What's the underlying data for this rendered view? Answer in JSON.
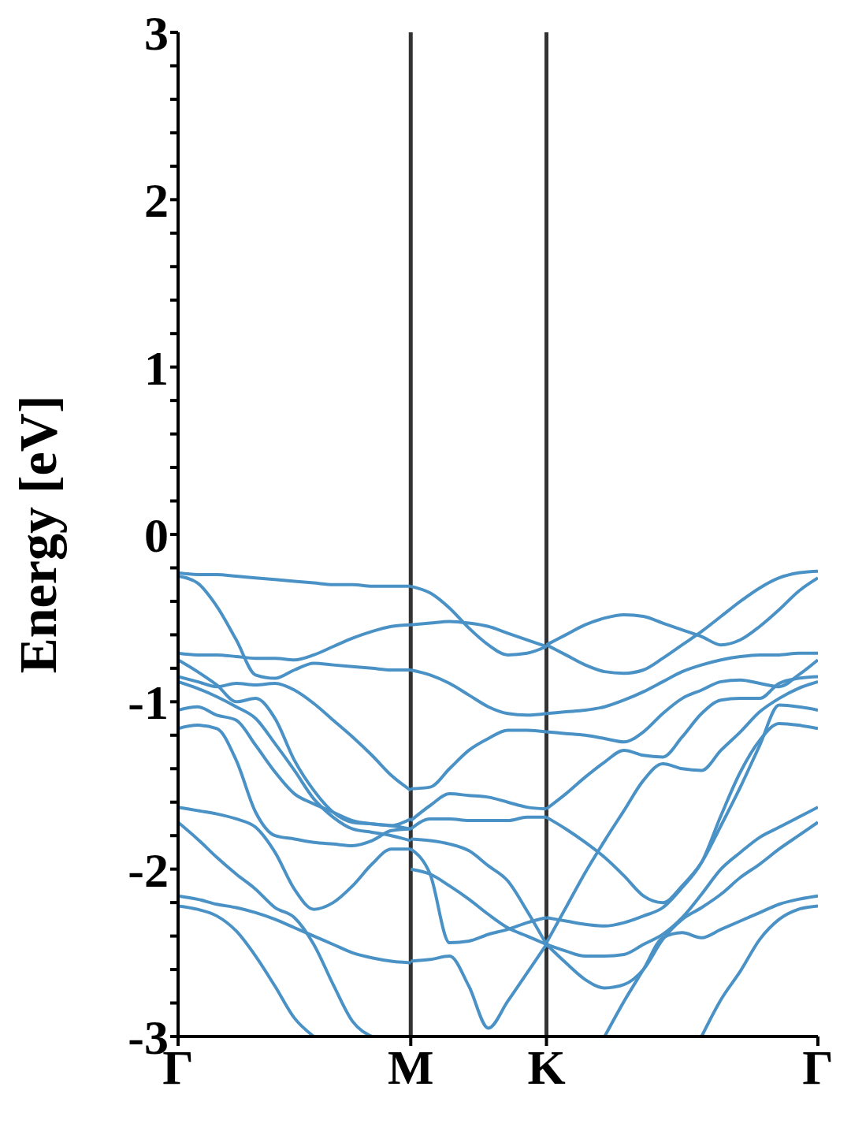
{
  "chart_data": {
    "type": "line",
    "ylabel": "Energy [eV]",
    "categories": [
      "Γ",
      null,
      null,
      null,
      null,
      null,
      null,
      null,
      null,
      null,
      null,
      null,
      "M",
      null,
      null,
      null,
      null,
      null,
      null,
      "K",
      null,
      null,
      null,
      null,
      null,
      null,
      null,
      null,
      null,
      null,
      null,
      null,
      null,
      "Γ"
    ],
    "ylim": [
      -3,
      3
    ],
    "yticks": [
      -3,
      {
        "value": -2.8,
        "label": null
      },
      {
        "value": -2.6,
        "label": null
      },
      {
        "value": -2.4,
        "label": null
      },
      {
        "value": -2.2,
        "label": null
      },
      -2,
      {
        "value": -1.8,
        "label": null
      },
      {
        "value": -1.6,
        "label": null
      },
      {
        "value": -1.4,
        "label": null
      },
      {
        "value": -1.2,
        "label": null
      },
      -1,
      {
        "value": -0.8,
        "label": null
      },
      {
        "value": -0.6,
        "label": null
      },
      {
        "value": -0.4,
        "label": null
      },
      {
        "value": -0.2,
        "label": null
      },
      0,
      {
        "value": 0.2,
        "label": null
      },
      {
        "value": 0.4,
        "label": null
      },
      {
        "value": 0.6,
        "label": null
      },
      {
        "value": 0.8,
        "label": null
      },
      1,
      {
        "value": 1.2,
        "label": null
      },
      {
        "value": 1.4,
        "label": null
      },
      {
        "value": 1.6,
        "label": null
      },
      {
        "value": 1.8,
        "label": null
      },
      2,
      {
        "value": 2.2,
        "label": null
      },
      {
        "value": 2.4,
        "label": null
      },
      {
        "value": 2.6,
        "label": null
      },
      {
        "value": 2.8,
        "label": null
      },
      3
    ],
    "ref_lines": [
      {
        "axis": "x",
        "value": "M",
        "color": "#333333"
      },
      {
        "axis": "x",
        "value": "K",
        "color": "#333333"
      }
    ],
    "series": [
      {
        "color": "#4a92c6",
        "values": [
          -0.23,
          -0.24,
          -0.24,
          -0.25,
          -0.26,
          -0.27,
          -0.28,
          -0.29,
          -0.3,
          -0.3,
          -0.31,
          -0.31,
          -0.31,
          null,
          null,
          null,
          null,
          null,
          null,
          null,
          null,
          null,
          null,
          null,
          null,
          null,
          null,
          null,
          null,
          null,
          null,
          null,
          null,
          null
        ]
      },
      {
        "color": "#4a92c6",
        "values": [
          -0.25,
          -0.29,
          -0.43,
          -0.63,
          -0.84,
          -0.86,
          -0.81,
          -0.77,
          -0.78,
          -0.79,
          -0.8,
          -0.81,
          -0.81,
          null,
          null,
          null,
          null,
          null,
          null,
          null,
          null,
          null,
          null,
          null,
          null,
          null,
          null,
          null,
          null,
          null,
          null,
          null,
          null,
          null
        ]
      },
      {
        "color": "#4a92c6",
        "values": [
          -0.71,
          -0.72,
          -0.72,
          -0.73,
          -0.74,
          -0.74,
          -0.75,
          -0.72,
          -0.67,
          -0.62,
          -0.58,
          -0.55,
          -0.54,
          null,
          null,
          null,
          null,
          null,
          null,
          null,
          null,
          null,
          null,
          null,
          null,
          null,
          null,
          null,
          null,
          null,
          null,
          null,
          null,
          null
        ]
      },
      {
        "color": "#4a92c6",
        "values": [
          -0.75,
          -0.82,
          -0.9,
          -1,
          -0.98,
          -1.1,
          -1.35,
          -1.53,
          -1.66,
          -1.72,
          -1.73,
          -1.74,
          -1.76,
          null,
          null,
          null,
          null,
          null,
          null,
          null,
          null,
          null,
          null,
          null,
          null,
          null,
          null,
          null,
          null,
          null,
          null,
          null,
          null,
          null
        ]
      },
      {
        "color": "#4a92c6",
        "values": [
          -0.85,
          -0.88,
          -0.91,
          -0.89,
          -0.9,
          -0.89,
          -0.93,
          -1.01,
          -1.11,
          -1.21,
          -1.32,
          -1.44,
          -1.53,
          null,
          null,
          null,
          null,
          null,
          null,
          null,
          null,
          null,
          null,
          null,
          null,
          null,
          null,
          null,
          null,
          null,
          null,
          null,
          null,
          null
        ]
      },
      {
        "color": "#4a92c6",
        "values": [
          -0.88,
          -0.92,
          -0.97,
          -1.03,
          -1.1,
          -1.25,
          -1.41,
          -1.58,
          -1.69,
          -1.76,
          -1.78,
          -1.8,
          -1.83,
          null,
          null,
          null,
          null,
          null,
          null,
          null,
          null,
          null,
          null,
          null,
          null,
          null,
          null,
          null,
          null,
          null,
          null,
          null,
          null,
          null
        ]
      },
      {
        "color": "#4a92c6",
        "values": [
          -1.05,
          -1.03,
          -1.08,
          -1.11,
          -1.26,
          -1.42,
          -1.55,
          -1.61,
          -1.66,
          -1.71,
          -1.73,
          -1.74,
          -1.7,
          null,
          null,
          null,
          null,
          null,
          null,
          null,
          null,
          null,
          null,
          null,
          null,
          null,
          null,
          null,
          null,
          null,
          null,
          null,
          null,
          null
        ]
      },
      {
        "color": "#4a92c6",
        "values": [
          -1.16,
          -1.14,
          -1.16,
          -1.35,
          -1.66,
          -1.8,
          -1.82,
          -1.84,
          -1.85,
          -1.86,
          -1.83,
          -1.77,
          -1.76,
          null,
          null,
          null,
          null,
          null,
          null,
          null,
          null,
          null,
          null,
          null,
          null,
          null,
          null,
          null,
          null,
          null,
          null,
          null,
          null,
          null
        ]
      },
      {
        "color": "#4a92c6",
        "values": [
          -1.63,
          -1.65,
          -1.67,
          -1.7,
          -1.75,
          -1.9,
          -2.12,
          -2.24,
          -2.2,
          -2.1,
          -1.97,
          -1.88,
          -1.88,
          null,
          null,
          null,
          null,
          null,
          null,
          null,
          null,
          null,
          null,
          null,
          null,
          null,
          null,
          null,
          null,
          null,
          null,
          null,
          null,
          null
        ]
      },
      {
        "color": "#4a92c6",
        "values": [
          -1.72,
          -1.82,
          -1.93,
          -2.03,
          -2.12,
          -2.23,
          -2.29,
          -2.45,
          -2.69,
          -2.91,
          -3,
          null,
          null,
          null,
          null,
          null,
          null,
          null,
          null,
          null,
          null,
          null,
          null,
          null,
          null,
          null,
          null,
          null,
          null,
          null,
          null,
          null,
          null,
          null
        ]
      },
      {
        "color": "#4a92c6",
        "values": [
          -2.16,
          -2.18,
          -2.21,
          -2.23,
          -2.26,
          -2.3,
          -2.35,
          -2.4,
          -2.45,
          -2.5,
          -2.53,
          -2.55,
          -2.56,
          null,
          null,
          null,
          null,
          null,
          null,
          null,
          null,
          null,
          null,
          null,
          null,
          null,
          null,
          null,
          null,
          null,
          null,
          null,
          null,
          null
        ]
      },
      {
        "color": "#4a92c6",
        "values": [
          -2.22,
          -2.24,
          -2.28,
          -2.37,
          -2.52,
          -2.7,
          -2.89,
          -3,
          null,
          null,
          null,
          null,
          null,
          null,
          null,
          null,
          null,
          null,
          null,
          null,
          null,
          null,
          null,
          null,
          null,
          null,
          null,
          null,
          null,
          null,
          null,
          null,
          null,
          null
        ]
      },
      {
        "color": "#4a92c6",
        "values": [
          null,
          null,
          null,
          null,
          null,
          null,
          null,
          null,
          null,
          null,
          null,
          null,
          -0.31,
          -0.35,
          -0.44,
          -0.56,
          -0.66,
          -0.72,
          -0.71,
          -0.67,
          null,
          null,
          null,
          null,
          null,
          null,
          null,
          null,
          null,
          null,
          null,
          null,
          null,
          null
        ]
      },
      {
        "color": "#4a92c6",
        "values": [
          null,
          null,
          null,
          null,
          null,
          null,
          null,
          null,
          null,
          null,
          null,
          null,
          -0.54,
          -0.53,
          -0.52,
          -0.53,
          -0.55,
          -0.59,
          -0.63,
          -0.67,
          null,
          null,
          null,
          null,
          null,
          null,
          null,
          null,
          null,
          null,
          null,
          null,
          null,
          null
        ]
      },
      {
        "color": "#4a92c6",
        "values": [
          null,
          null,
          null,
          null,
          null,
          null,
          null,
          null,
          null,
          null,
          null,
          null,
          -0.81,
          -0.84,
          -0.89,
          -0.96,
          -1.03,
          -1.07,
          -1.08,
          -1.07,
          null,
          null,
          null,
          null,
          null,
          null,
          null,
          null,
          null,
          null,
          null,
          null,
          null,
          null
        ]
      },
      {
        "color": "#4a92c6",
        "values": [
          null,
          null,
          null,
          null,
          null,
          null,
          null,
          null,
          null,
          null,
          null,
          null,
          -1.52,
          -1.51,
          -1.4,
          -1.29,
          -1.22,
          -1.17,
          -1.17,
          -1.18,
          null,
          null,
          null,
          null,
          null,
          null,
          null,
          null,
          null,
          null,
          null,
          null,
          null,
          null
        ]
      },
      {
        "color": "#4a92c6",
        "values": [
          null,
          null,
          null,
          null,
          null,
          null,
          null,
          null,
          null,
          null,
          null,
          null,
          -1.71,
          -1.62,
          -1.55,
          -1.56,
          -1.57,
          -1.6,
          -1.63,
          -1.64,
          null,
          null,
          null,
          null,
          null,
          null,
          null,
          null,
          null,
          null,
          null,
          null,
          null,
          null
        ]
      },
      {
        "color": "#4a92c6",
        "values": [
          null,
          null,
          null,
          null,
          null,
          null,
          null,
          null,
          null,
          null,
          null,
          null,
          -1.76,
          -1.7,
          -1.7,
          -1.71,
          -1.71,
          -1.71,
          -1.69,
          -1.69,
          null,
          null,
          null,
          null,
          null,
          null,
          null,
          null,
          null,
          null,
          null,
          null,
          null,
          null
        ]
      },
      {
        "color": "#4a92c6",
        "values": [
          null,
          null,
          null,
          null,
          null,
          null,
          null,
          null,
          null,
          null,
          null,
          null,
          -1.82,
          -1.83,
          -1.85,
          -1.89,
          -1.98,
          -2.07,
          -2.25,
          -2.45,
          null,
          null,
          null,
          null,
          null,
          null,
          null,
          null,
          null,
          null,
          null,
          null,
          null,
          null
        ]
      },
      {
        "color": "#4a92c6",
        "values": [
          null,
          null,
          null,
          null,
          null,
          null,
          null,
          null,
          null,
          null,
          null,
          null,
          -1.88,
          -2.03,
          -2.44,
          -2.43,
          -2.39,
          -2.36,
          -2.32,
          -2.29,
          null,
          null,
          null,
          null,
          null,
          null,
          null,
          null,
          null,
          null,
          null,
          null,
          null,
          null
        ]
      },
      {
        "color": "#4a92c6",
        "values": [
          null,
          null,
          null,
          null,
          null,
          null,
          null,
          null,
          null,
          null,
          null,
          null,
          -2,
          -2.03,
          -2.1,
          -2.18,
          -2.27,
          -2.35,
          -2.4,
          -2.45,
          null,
          null,
          null,
          null,
          null,
          null,
          null,
          null,
          null,
          null,
          null,
          null,
          null,
          null
        ]
      },
      {
        "color": "#4a92c6",
        "values": [
          null,
          null,
          null,
          null,
          null,
          null,
          null,
          null,
          null,
          null,
          null,
          null,
          -2.55,
          -2.54,
          -2.52,
          -2.7,
          -2.95,
          -2.79,
          -2.62,
          -2.45,
          null,
          null,
          null,
          null,
          null,
          null,
          null,
          null,
          null,
          null,
          null,
          null,
          null,
          null
        ]
      },
      {
        "color": "#4a92c6",
        "values": [
          null,
          null,
          null,
          null,
          null,
          null,
          null,
          null,
          null,
          null,
          null,
          null,
          null,
          null,
          null,
          null,
          null,
          null,
          null,
          -0.66,
          -0.6,
          -0.54,
          -0.5,
          -0.48,
          -0.49,
          -0.53,
          -0.57,
          -0.61,
          -0.66,
          -0.63,
          -0.55,
          -0.45,
          -0.34,
          -0.26
        ]
      },
      {
        "color": "#4a92c6",
        "values": [
          null,
          null,
          null,
          null,
          null,
          null,
          null,
          null,
          null,
          null,
          null,
          null,
          null,
          null,
          null,
          null,
          null,
          null,
          null,
          -0.66,
          -0.72,
          -0.78,
          -0.82,
          -0.83,
          -0.81,
          -0.74,
          -0.66,
          -0.58,
          -0.49,
          -0.4,
          -0.32,
          -0.26,
          -0.23,
          -0.22
        ]
      },
      {
        "color": "#4a92c6",
        "values": [
          null,
          null,
          null,
          null,
          null,
          null,
          null,
          null,
          null,
          null,
          null,
          null,
          null,
          null,
          null,
          null,
          null,
          null,
          null,
          -1.07,
          -1.06,
          -1.05,
          -1.03,
          -0.99,
          -0.94,
          -0.88,
          -0.82,
          -0.78,
          -0.75,
          -0.73,
          -0.72,
          -0.72,
          -0.71,
          -0.71
        ]
      },
      {
        "color": "#4a92c6",
        "values": [
          null,
          null,
          null,
          null,
          null,
          null,
          null,
          null,
          null,
          null,
          null,
          null,
          null,
          null,
          null,
          null,
          null,
          null,
          null,
          -1.18,
          -1.19,
          -1.2,
          -1.22,
          -1.24,
          -1.18,
          -1.07,
          -0.98,
          -0.93,
          -0.88,
          -0.87,
          -0.89,
          -0.91,
          -0.84,
          -0.75
        ]
      },
      {
        "color": "#4a92c6",
        "values": [
          null,
          null,
          null,
          null,
          null,
          null,
          null,
          null,
          null,
          null,
          null,
          null,
          null,
          null,
          null,
          null,
          null,
          null,
          null,
          -1.64,
          -1.55,
          -1.45,
          -1.36,
          -1.29,
          -1.32,
          -1.33,
          -1.21,
          -1.07,
          -0.99,
          -0.98,
          -0.98,
          -0.89,
          -0.86,
          -0.85
        ]
      },
      {
        "color": "#4a92c6",
        "values": [
          null,
          null,
          null,
          null,
          null,
          null,
          null,
          null,
          null,
          null,
          null,
          null,
          null,
          null,
          null,
          null,
          null,
          null,
          null,
          -1.69,
          -1.76,
          -1.84,
          -1.93,
          -2.04,
          -2.16,
          -2.2,
          -2.1,
          -1.96,
          -1.74,
          -1.51,
          -1.26,
          -1.02,
          -1.03,
          -1.05
        ]
      },
      {
        "color": "#4a92c6",
        "values": [
          null,
          null,
          null,
          null,
          null,
          null,
          null,
          null,
          null,
          null,
          null,
          null,
          null,
          null,
          null,
          null,
          null,
          null,
          null,
          -2.44,
          -2.23,
          -2.02,
          -1.83,
          -1.65,
          -1.47,
          -1.37,
          -1.4,
          -1.41,
          -1.29,
          -1.18,
          -1.06,
          -0.98,
          -0.92,
          -0.88
        ]
      },
      {
        "color": "#4a92c6",
        "values": [
          null,
          null,
          null,
          null,
          null,
          null,
          null,
          null,
          null,
          null,
          null,
          null,
          null,
          null,
          null,
          null,
          null,
          null,
          null,
          -2.29,
          -2.31,
          -2.33,
          -2.34,
          -2.32,
          -2.28,
          -2.23,
          -2.11,
          -1.96,
          -1.68,
          -1.42,
          -1.23,
          -1.13,
          -1.14,
          -1.16
        ]
      },
      {
        "color": "#4a92c6",
        "values": [
          null,
          null,
          null,
          null,
          null,
          null,
          null,
          null,
          null,
          null,
          null,
          null,
          null,
          null,
          null,
          null,
          null,
          null,
          null,
          -2.45,
          -2.49,
          -2.52,
          -2.52,
          -2.51,
          -2.45,
          -2.39,
          -2.29,
          -2.15,
          -2,
          -1.9,
          -1.81,
          -1.75,
          -1.69,
          -1.63
        ]
      },
      {
        "color": "#4a92c6",
        "values": [
          null,
          null,
          null,
          null,
          null,
          null,
          null,
          null,
          null,
          null,
          null,
          null,
          null,
          null,
          null,
          null,
          null,
          null,
          null,
          -2.45,
          -2.56,
          -2.66,
          -2.71,
          -2.69,
          -2.6,
          -2.42,
          -2.3,
          -2.23,
          -2.15,
          -2.05,
          -1.97,
          -1.88,
          -1.8,
          -1.72
        ]
      },
      {
        "color": "#4a92c6",
        "values": [
          null,
          null,
          null,
          null,
          null,
          null,
          null,
          null,
          null,
          null,
          null,
          null,
          null,
          null,
          null,
          null,
          null,
          null,
          null,
          null,
          null,
          null,
          -3,
          -2.79,
          -2.6,
          -2.41,
          -2.38,
          -2.41,
          -2.36,
          -2.31,
          -2.26,
          -2.21,
          -2.18,
          -2.16
        ]
      },
      {
        "color": "#4a92c6",
        "values": [
          null,
          null,
          null,
          null,
          null,
          null,
          null,
          null,
          null,
          null,
          null,
          null,
          null,
          null,
          null,
          null,
          null,
          null,
          null,
          null,
          null,
          null,
          null,
          null,
          null,
          null,
          null,
          -3,
          -2.78,
          -2.61,
          -2.42,
          -2.3,
          -2.24,
          -2.22
        ]
      }
    ]
  }
}
